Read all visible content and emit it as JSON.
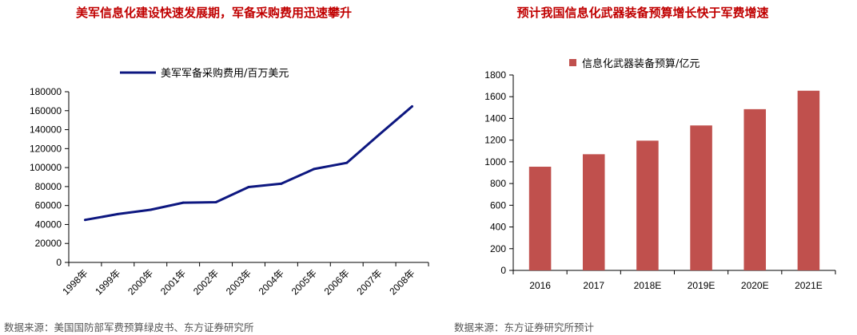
{
  "left_title": "美军信息化建设快速发展期，军备采购费用迅速攀升",
  "right_title": "预计我国信息化武器装备预算增长快于军费增速",
  "left_source": "数据来源：美国国防部军费预算绿皮书、东方证券研究所",
  "right_source": "数据来源：东方证券研究所预计",
  "chart_data": [
    {
      "type": "line",
      "title": "美军信息化建设快速发展期，军备采购费用迅速攀升",
      "categories": [
        "1998年",
        "1999年",
        "2000年",
        "2001年",
        "2002年",
        "2003年",
        "2004年",
        "2005年",
        "2006年",
        "2007年",
        "2008年"
      ],
      "series": [
        {
          "name": "美军军备采购费用/百万美元",
          "values": [
            44800,
            51000,
            55500,
            63000,
            63500,
            79500,
            83000,
            98500,
            105000,
            135000,
            164500
          ]
        }
      ],
      "xlabel": "",
      "ylabel": "",
      "ylim": [
        0,
        180000
      ],
      "yticks": [
        "0",
        "20000",
        "40000",
        "60000",
        "80000",
        "100000",
        "120000",
        "140000",
        "160000",
        "180000"
      ],
      "legend_position": "top",
      "grid": false,
      "line_color": "#0d1780"
    },
    {
      "type": "bar",
      "title": "预计我国信息化武器装备预算增长快于军费增速",
      "categories": [
        "2016",
        "2017",
        "2018E",
        "2019E",
        "2020E",
        "2021E"
      ],
      "series": [
        {
          "name": "信息化武器装备预算/亿元",
          "values": [
            955,
            1070,
            1195,
            1335,
            1485,
            1655
          ]
        }
      ],
      "xlabel": "",
      "ylabel": "",
      "ylim": [
        0,
        1800
      ],
      "yticks": [
        "0",
        "200",
        "400",
        "600",
        "800",
        "1000",
        "1200",
        "1400",
        "1600",
        "1800"
      ],
      "legend_position": "top",
      "grid": false,
      "bar_color": "#c0504d"
    }
  ]
}
